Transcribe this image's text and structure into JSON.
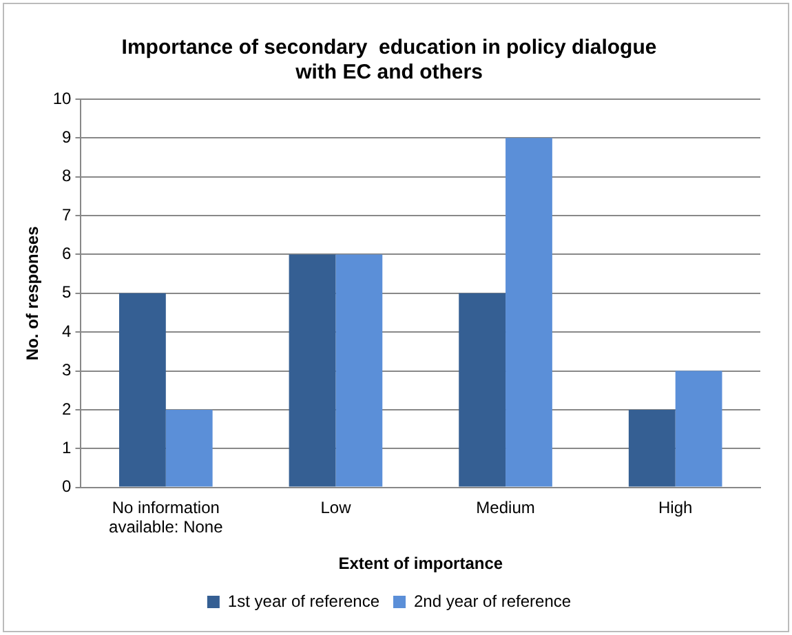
{
  "chart_data": {
    "type": "bar",
    "title": "Importance of secondary  education in policy dialogue\nwith EC and others",
    "xlabel": "Extent of importance",
    "ylabel": "No. of responses",
    "categories": [
      "No information available: None",
      "Low",
      "Medium",
      "High"
    ],
    "series": [
      {
        "name": "1st year of reference",
        "color": "#355f93",
        "values": [
          5,
          6,
          5,
          2
        ]
      },
      {
        "name": "2nd year of reference",
        "color": "#5b8fd8",
        "values": [
          2,
          6,
          9,
          3
        ]
      }
    ],
    "ylim": [
      0,
      10
    ],
    "yticks": [
      0,
      1,
      2,
      3,
      4,
      5,
      6,
      7,
      8,
      9,
      10
    ],
    "grid": "y",
    "legend": "bottom"
  }
}
